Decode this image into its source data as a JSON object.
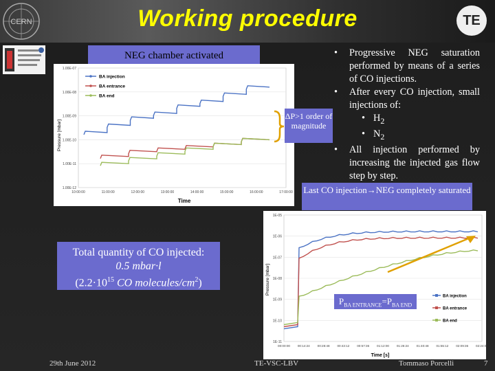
{
  "slide": {
    "title": "Working procedure",
    "te_logo": "TE",
    "cern_logo_text": "CERN",
    "neg_label": "NEG chamber activated",
    "dp_label": "ΔP>1 order of magnitude",
    "bullets": [
      "Progressive NEG saturation performed by means of a series of CO injections.",
      "After every CO injection, small injections of:",
      "All injection performed by increasing the injected gas flow step by step."
    ],
    "sub_bullets": [
      {
        "base": "H",
        "sub": "2"
      },
      {
        "base": "N",
        "sub": "2"
      }
    ],
    "last_co": "Last CO injection→NEG completely saturated",
    "total": {
      "line1": "Total quantity of CO injected:",
      "line2": "0.5 mbar·l",
      "line3_pre": "(2.2·10",
      "line3_sup": "15",
      "line3_mid": " CO molecules/cm",
      "line3_sup2": "2",
      "line3_post": ")"
    },
    "pba": {
      "p1": "P",
      "s1": "BA ENTRANCE",
      "eq": "=P",
      "s2": "BA END"
    },
    "footer": {
      "date": "29th June 2012",
      "dept": "TE-VSC-LBV",
      "author": "Tommaso Porcelli",
      "page": "7"
    }
  },
  "colors": {
    "title": "#ffff00",
    "box": "#6b6bce",
    "ba_injection": "#4a72c4",
    "ba_entrance": "#c0504d",
    "ba_end": "#9bbb59"
  },
  "chart_data": [
    {
      "type": "line",
      "xlabel": "Time",
      "ylabel": "Pressure [mbar]",
      "y_scale": "log",
      "y_ticks": [
        "1.00E-07",
        "1.00E-08",
        "1.00E-09",
        "1.00E-10",
        "1.00E-11",
        "1.00E-12"
      ],
      "x_ticks": [
        "10:00:00",
        "11:00:00",
        "12:00:00",
        "13:00:00",
        "14:00:00",
        "15:00:00",
        "16:00:00",
        "17:00:00"
      ],
      "legend": [
        "BA injection",
        "BA entrance",
        "BA end"
      ],
      "legend_position": "top-left",
      "series": [
        {
          "name": "BA injection",
          "steps_log10": [
            -9.7,
            -9.4,
            -9.1,
            -8.9,
            -8.6,
            -8.4,
            -8.1,
            -7.8
          ]
        },
        {
          "name": "BA entrance",
          "steps_log10": [
            -10.7,
            -10.5,
            -10.4,
            -10.3,
            -10.2,
            -10.0
          ]
        },
        {
          "name": "BA end",
          "steps_log10": [
            -11.0,
            -10.8,
            -10.6,
            -10.4,
            -10.2,
            -10.0
          ]
        }
      ]
    },
    {
      "type": "line",
      "xlabel": "Time [s]",
      "ylabel": "Pressure [mbar]",
      "y_scale": "log",
      "y_ticks": [
        "1E-05",
        "1E-06",
        "1E-07",
        "1E-08",
        "1E-09",
        "1E-10",
        "1E-11"
      ],
      "x_ticks": [
        "00:00:00",
        "00:14:24",
        "00:28:48",
        "00:43:12",
        "00:57:36",
        "01:12:00",
        "01:26:24",
        "01:40:48",
        "01:55:12",
        "02:09:36",
        "02:24:00"
      ],
      "legend": [
        "BA injection",
        "BA entrance",
        "BA end"
      ],
      "legend_position": "bottom-right",
      "series": [
        {
          "name": "BA injection",
          "final_log10": -5.8
        },
        {
          "name": "BA entrance",
          "final_log10": -6.1
        },
        {
          "name": "BA end",
          "final_log10": -6.7
        }
      ]
    }
  ]
}
